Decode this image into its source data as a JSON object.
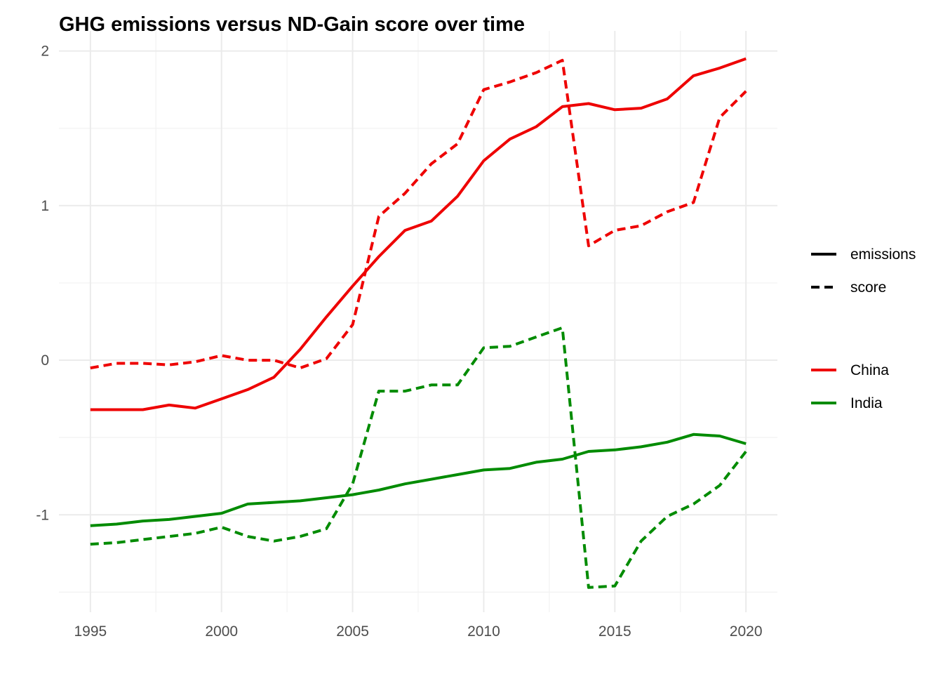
{
  "chart_data": {
    "type": "line",
    "title": "GHG emissions versus ND-Gain score over time",
    "xlabel": "",
    "ylabel": "",
    "xlim": [
      1993.8,
      2021.2
    ],
    "ylim": [
      -1.63,
      2.13
    ],
    "x_ticks": [
      1995,
      2000,
      2005,
      2010,
      2015,
      2020
    ],
    "x_tick_labels": [
      "1995",
      "2000",
      "2005",
      "2010",
      "2015",
      "2020"
    ],
    "y_ticks": [
      -1,
      0,
      1,
      2
    ],
    "y_tick_labels": [
      "-1",
      "0",
      "1",
      "2"
    ],
    "grid": true,
    "legend_position": "right",
    "linetype_legend": [
      {
        "label": "emissions",
        "dash": "solid"
      },
      {
        "label": "score",
        "dash": "dashed"
      }
    ],
    "color_legend": [
      {
        "label": "China",
        "color": "#ee0000"
      },
      {
        "label": "India",
        "color": "#008b00"
      }
    ],
    "x": [
      1995,
      1996,
      1997,
      1998,
      1999,
      2000,
      2001,
      2002,
      2003,
      2004,
      2005,
      2006,
      2007,
      2008,
      2009,
      2010,
      2011,
      2012,
      2013,
      2014,
      2015,
      2016,
      2017,
      2018,
      2019,
      2020
    ],
    "series": [
      {
        "name": "China",
        "variable": "emissions",
        "color": "#ee0000",
        "dash": "solid",
        "values": [
          -0.32,
          -0.32,
          -0.32,
          -0.29,
          -0.31,
          -0.25,
          -0.19,
          -0.11,
          0.07,
          0.28,
          0.48,
          0.67,
          0.84,
          0.9,
          1.06,
          1.29,
          1.43,
          1.51,
          1.64,
          1.66,
          1.62,
          1.63,
          1.69,
          1.84,
          1.89,
          1.95
        ]
      },
      {
        "name": "China",
        "variable": "score",
        "color": "#ee0000",
        "dash": "dashed",
        "values": [
          -0.05,
          -0.02,
          -0.02,
          -0.03,
          -0.01,
          0.03,
          0.0,
          -0.0,
          -0.05,
          0.01,
          0.23,
          0.93,
          1.08,
          1.27,
          1.4,
          1.75,
          1.8,
          1.86,
          1.94,
          0.74,
          0.84,
          0.87,
          0.96,
          1.02,
          1.57,
          1.74
        ]
      },
      {
        "name": "India",
        "variable": "emissions",
        "color": "#008b00",
        "dash": "solid",
        "values": [
          -1.07,
          -1.06,
          -1.04,
          -1.03,
          -1.01,
          -0.99,
          -0.93,
          -0.92,
          -0.91,
          -0.89,
          -0.87,
          -0.84,
          -0.8,
          -0.77,
          -0.74,
          -0.71,
          -0.7,
          -0.66,
          -0.64,
          -0.59,
          -0.58,
          -0.56,
          -0.53,
          -0.48,
          -0.49,
          -0.54
        ]
      },
      {
        "name": "India",
        "variable": "score",
        "color": "#008b00",
        "dash": "dashed",
        "values": [
          -1.19,
          -1.18,
          -1.16,
          -1.14,
          -1.12,
          -1.08,
          -1.14,
          -1.17,
          -1.14,
          -1.09,
          -0.8,
          -0.2,
          -0.2,
          -0.16,
          -0.16,
          0.08,
          0.09,
          0.15,
          0.21,
          -1.47,
          -1.46,
          -1.17,
          -1.01,
          -0.93,
          -0.81,
          -0.59
        ]
      }
    ]
  }
}
